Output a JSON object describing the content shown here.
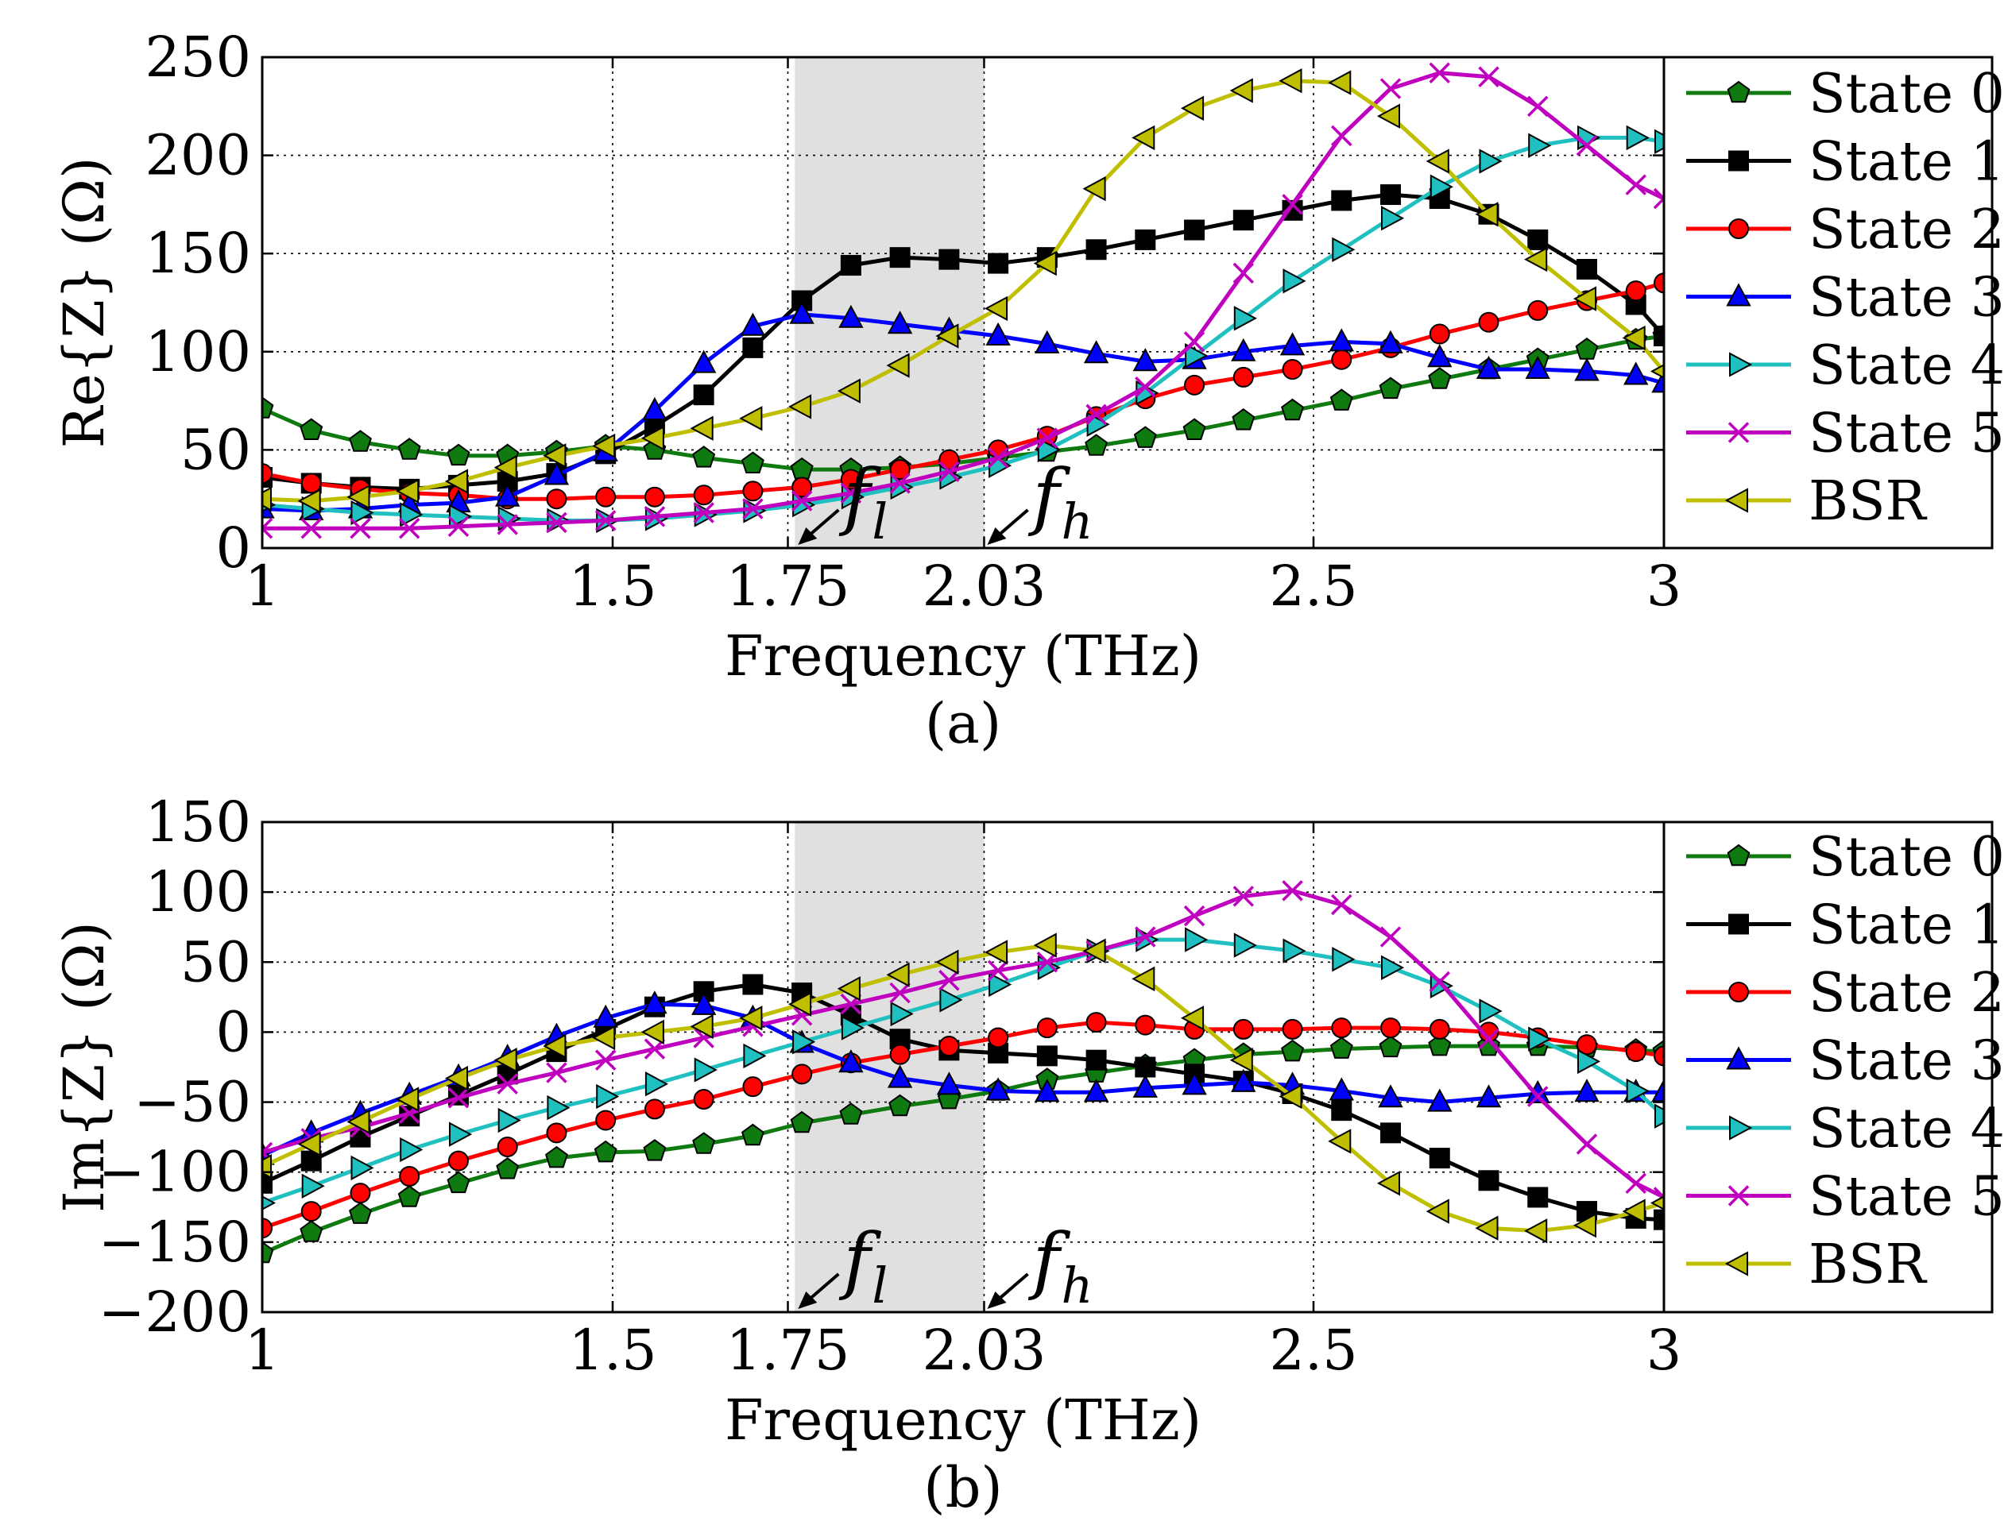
{
  "chart_data": [
    {
      "type": "line",
      "caption": "(a)",
      "xlabel": "Frequency (THz)",
      "ylabel": "Re{Z} (Ω)",
      "xlim": [
        1,
        3
      ],
      "ylim": [
        0,
        250
      ],
      "xticks": [
        1,
        1.5,
        1.75,
        2.03,
        2.5,
        3
      ],
      "xtick_labels": [
        "1",
        "1.5",
        "1.75",
        "2.03",
        "2.5",
        "3"
      ],
      "yticks": [
        0,
        50,
        100,
        150,
        200,
        250
      ],
      "ytick_labels": [
        "0",
        "50",
        "100",
        "150",
        "200",
        "250"
      ],
      "grid": true,
      "legend_position": "right, outside plot",
      "shaded_band": [
        1.76,
        2.03
      ],
      "band_annotations": [
        {
          "label": "f",
          "sub": "l",
          "x": 1.76
        },
        {
          "label": "f",
          "sub": "h",
          "x": 2.03
        }
      ],
      "x": [
        1.0,
        1.07,
        1.14,
        1.21,
        1.28,
        1.35,
        1.42,
        1.49,
        1.56,
        1.63,
        1.7,
        1.77,
        1.84,
        1.91,
        1.98,
        2.05,
        2.12,
        2.19,
        2.26,
        2.33,
        2.4,
        2.47,
        2.54,
        2.61,
        2.68,
        2.75,
        2.82,
        2.89,
        2.96,
        3.0
      ],
      "series": [
        {
          "name": "State 0",
          "color": "#0f7a0f",
          "marker": "pentagon",
          "values": [
            71,
            60,
            54,
            50,
            47,
            47,
            49,
            52,
            50,
            46,
            43,
            40,
            40,
            41,
            43,
            46,
            49,
            52,
            56,
            60,
            65,
            70,
            75,
            81,
            86,
            91,
            96,
            101,
            106,
            108
          ]
        },
        {
          "name": "State 1",
          "color": "#000000",
          "marker": "square",
          "values": [
            36,
            33,
            31,
            30,
            32,
            34,
            38,
            48,
            62,
            78,
            102,
            126,
            144,
            148,
            147,
            145,
            148,
            152,
            157,
            162,
            167,
            172,
            177,
            180,
            178,
            170,
            157,
            142,
            124,
            108
          ]
        },
        {
          "name": "State 2",
          "color": "#ff0000",
          "marker": "circle",
          "values": [
            38,
            33,
            30,
            28,
            27,
            25,
            25,
            26,
            26,
            27,
            29,
            31,
            35,
            40,
            45,
            50,
            57,
            67,
            76,
            83,
            87,
            91,
            96,
            102,
            109,
            115,
            121,
            126,
            131,
            135
          ]
        },
        {
          "name": "State 3",
          "color": "#0000ff",
          "marker": "triangle-up",
          "values": [
            20,
            19,
            20,
            22,
            23,
            26,
            37,
            49,
            70,
            94,
            113,
            119,
            117,
            114,
            111,
            108,
            104,
            99,
            95,
            96,
            100,
            103,
            105,
            104,
            97,
            91,
            91,
            90,
            88,
            84
          ]
        },
        {
          "name": "State 4",
          "color": "#20c0c0",
          "marker": "triangle-right",
          "values": [
            22,
            20,
            18,
            17,
            16,
            15,
            14,
            14,
            15,
            17,
            19,
            22,
            26,
            31,
            36,
            42,
            50,
            63,
            79,
            98,
            117,
            136,
            152,
            168,
            184,
            197,
            205,
            209,
            209,
            207
          ]
        },
        {
          "name": "State 5",
          "color": "#bf00bf",
          "marker": "x",
          "values": [
            10,
            10,
            10,
            10,
            11,
            12,
            13,
            14,
            16,
            18,
            20,
            24,
            28,
            33,
            39,
            46,
            56,
            68,
            82,
            105,
            140,
            175,
            210,
            234,
            242,
            240,
            225,
            205,
            185,
            178
          ]
        },
        {
          "name": "BSR",
          "color": "#bfbf00",
          "marker": "triangle-left",
          "values": [
            25,
            24,
            26,
            29,
            34,
            41,
            47,
            52,
            56,
            61,
            66,
            72,
            80,
            93,
            108,
            122,
            145,
            183,
            209,
            224,
            233,
            238,
            237,
            220,
            197,
            170,
            147,
            127,
            107,
            90
          ]
        }
      ]
    },
    {
      "type": "line",
      "caption": "(b)",
      "xlabel": "Frequency (THz)",
      "ylabel": "Im{Z} (Ω)",
      "xlim": [
        1,
        3
      ],
      "ylim": [
        -200,
        150
      ],
      "xticks": [
        1,
        1.5,
        1.75,
        2.03,
        2.5,
        3
      ],
      "xtick_labels": [
        "1",
        "1.5",
        "1.75",
        "2.03",
        "2.5",
        "3"
      ],
      "yticks": [
        -200,
        -150,
        -100,
        -50,
        0,
        50,
        100,
        150
      ],
      "ytick_labels": [
        "−200",
        "−150",
        "−100",
        "−50",
        "0",
        "50",
        "100",
        "150"
      ],
      "grid": true,
      "legend_position": "right, outside plot",
      "shaded_band": [
        1.76,
        2.03
      ],
      "band_annotations": [
        {
          "label": "f",
          "sub": "l",
          "x": 1.76
        },
        {
          "label": "f",
          "sub": "h",
          "x": 2.03
        }
      ],
      "x": [
        1.0,
        1.07,
        1.14,
        1.21,
        1.28,
        1.35,
        1.42,
        1.49,
        1.56,
        1.63,
        1.7,
        1.77,
        1.84,
        1.91,
        1.98,
        2.05,
        2.12,
        2.19,
        2.26,
        2.33,
        2.4,
        2.47,
        2.54,
        2.61,
        2.68,
        2.75,
        2.82,
        2.89,
        2.96,
        3.0
      ],
      "series": [
        {
          "name": "State 0",
          "color": "#0f7a0f",
          "marker": "pentagon",
          "values": [
            -158,
            -143,
            -130,
            -118,
            -108,
            -98,
            -90,
            -86,
            -85,
            -80,
            -74,
            -65,
            -59,
            -53,
            -48,
            -42,
            -34,
            -29,
            -24,
            -20,
            -16,
            -14,
            -12,
            -11,
            -10,
            -10,
            -10,
            -11,
            -13,
            -14
          ]
        },
        {
          "name": "State 1",
          "color": "#000000",
          "marker": "square",
          "values": [
            -108,
            -92,
            -75,
            -60,
            -45,
            -30,
            -14,
            2,
            18,
            29,
            34,
            28,
            12,
            -5,
            -13,
            -15,
            -17,
            -20,
            -25,
            -30,
            -35,
            -44,
            -56,
            -72,
            -90,
            -106,
            -118,
            -128,
            -133,
            -134
          ]
        },
        {
          "name": "State 2",
          "color": "#ff0000",
          "marker": "circle",
          "values": [
            -140,
            -128,
            -115,
            -103,
            -92,
            -82,
            -72,
            -63,
            -55,
            -48,
            -39,
            -30,
            -22,
            -16,
            -10,
            -4,
            3,
            7,
            5,
            2,
            2,
            2,
            3,
            3,
            2,
            0,
            -4,
            -9,
            -14,
            -17
          ]
        },
        {
          "name": "State 3",
          "color": "#0000ff",
          "marker": "triangle-up",
          "values": [
            -88,
            -72,
            -58,
            -45,
            -32,
            -18,
            -3,
            10,
            20,
            19,
            10,
            -8,
            -22,
            -33,
            -38,
            -42,
            -43,
            -43,
            -40,
            -38,
            -36,
            -38,
            -42,
            -47,
            -50,
            -47,
            -44,
            -43,
            -43,
            -43
          ]
        },
        {
          "name": "State 4",
          "color": "#20c0c0",
          "marker": "triangle-right",
          "values": [
            -122,
            -110,
            -97,
            -84,
            -73,
            -63,
            -54,
            -46,
            -37,
            -27,
            -17,
            -7,
            3,
            13,
            23,
            34,
            46,
            58,
            66,
            66,
            62,
            58,
            52,
            46,
            33,
            15,
            -5,
            -21,
            -42,
            -60
          ]
        },
        {
          "name": "State 5",
          "color": "#bf00bf",
          "marker": "x",
          "values": [
            -86,
            -76,
            -68,
            -58,
            -47,
            -37,
            -29,
            -20,
            -12,
            -4,
            4,
            12,
            20,
            28,
            37,
            44,
            50,
            58,
            68,
            83,
            97,
            101,
            91,
            68,
            36,
            -5,
            -46,
            -80,
            -108,
            -118
          ]
        },
        {
          "name": "BSR",
          "color": "#bfbf00",
          "marker": "triangle-left",
          "values": [
            -96,
            -80,
            -64,
            -48,
            -33,
            -20,
            -10,
            -4,
            0,
            4,
            10,
            20,
            31,
            41,
            50,
            57,
            62,
            58,
            38,
            10,
            -20,
            -46,
            -78,
            -108,
            -128,
            -140,
            -142,
            -138,
            -128,
            -122
          ]
        }
      ]
    }
  ]
}
